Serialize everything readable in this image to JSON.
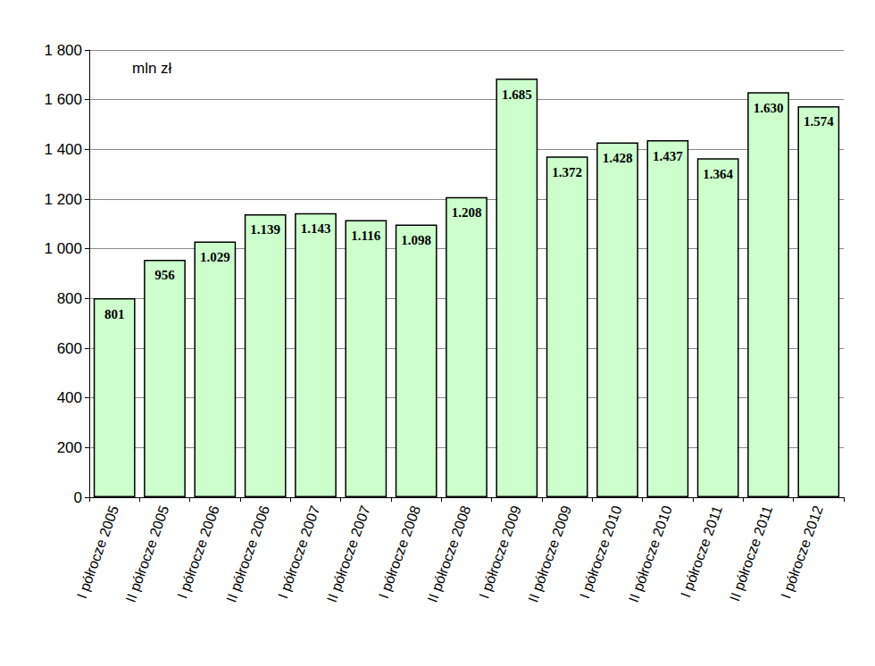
{
  "chart_data": {
    "type": "bar",
    "annotation": "mln zł",
    "categories": [
      "I półrocze 2005",
      "II półrocze 2005",
      "I półrocze 2006",
      "II półrocze 2006",
      "I półrocze 2007",
      "II półrocze 2007",
      "I półrocze 2008",
      "II półrocze 2008",
      "I półrocze 2009",
      "II półrocze 2009",
      "I półrocze 2010",
      "II półrocze 2010",
      "I półrocze 2011",
      "II półrocze 2011",
      "I półrocze 2012"
    ],
    "values": [
      801,
      956,
      1029,
      1139,
      1143,
      1116,
      1098,
      1208,
      1685,
      1372,
      1428,
      1437,
      1364,
      1630,
      1574
    ],
    "value_labels": [
      "801",
      "956",
      "1.029",
      "1.139",
      "1.143",
      "1.116",
      "1.098",
      "1.208",
      "1.685",
      "1.372",
      "1.428",
      "1.437",
      "1.364",
      "1.630",
      "1.574"
    ],
    "color": "#ccffcc",
    "ylim": [
      0,
      1800
    ],
    "yticks": [
      0,
      200,
      400,
      600,
      800,
      {
        "value": 1000,
        "label": "1 000"
      },
      {
        "value": 1200,
        "label": "1 200"
      },
      {
        "value": 1400,
        "label": "1 400"
      },
      {
        "value": 1600,
        "label": "1 600"
      },
      {
        "value": 1800,
        "label": "1 800"
      }
    ],
    "grid": true,
    "data_labels": true
  }
}
